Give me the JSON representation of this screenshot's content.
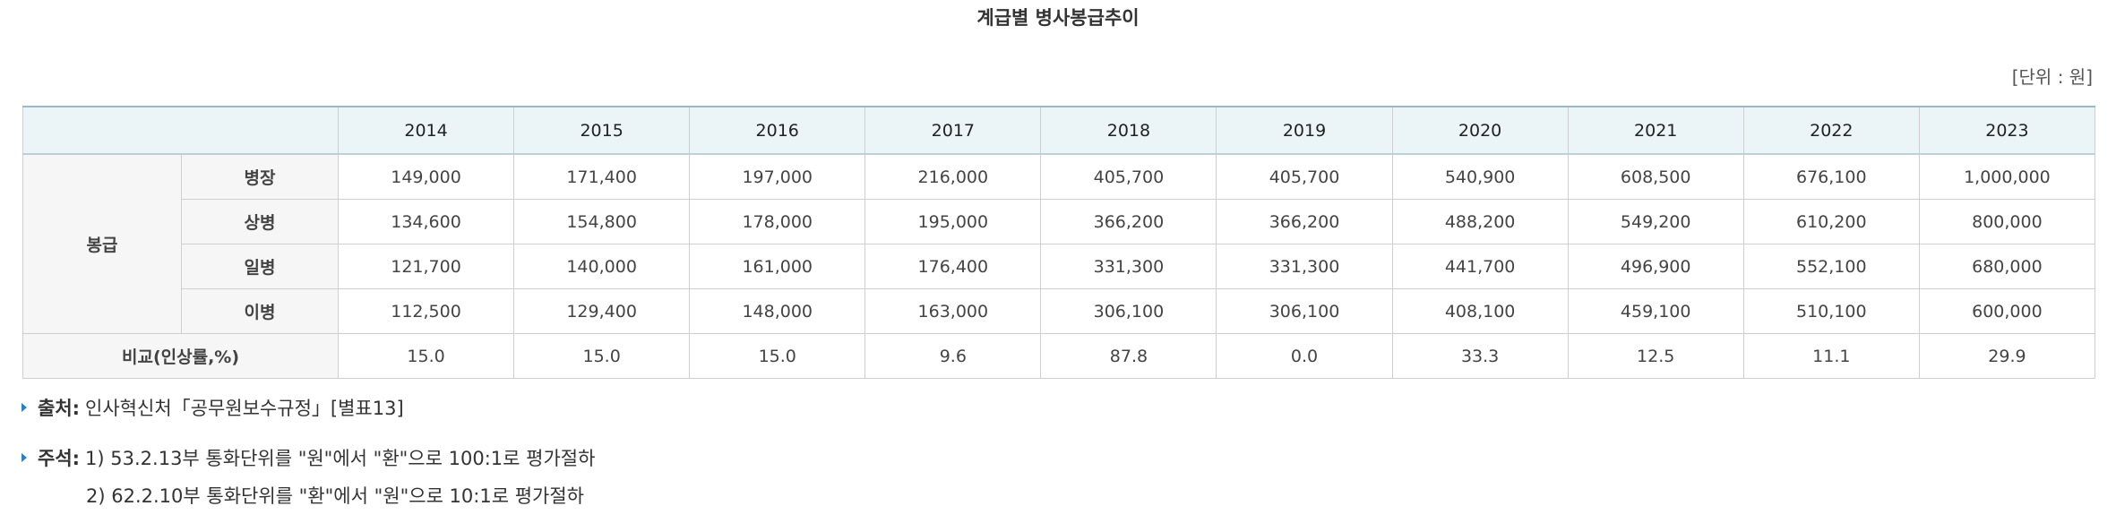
{
  "title": "계급별 병사봉급추이",
  "unit": "[단위 : 원]",
  "table": {
    "years": [
      "2014",
      "2015",
      "2016",
      "2017",
      "2018",
      "2019",
      "2020",
      "2021",
      "2022",
      "2023"
    ],
    "group_label": "봉급",
    "rows": [
      {
        "rank": "병장",
        "values": [
          "149,000",
          "171,400",
          "197,000",
          "216,000",
          "405,700",
          "405,700",
          "540,900",
          "608,500",
          "676,100",
          "1,000,000"
        ]
      },
      {
        "rank": "상병",
        "values": [
          "134,600",
          "154,800",
          "178,000",
          "195,000",
          "366,200",
          "366,200",
          "488,200",
          "549,200",
          "610,200",
          "800,000"
        ]
      },
      {
        "rank": "일병",
        "values": [
          "121,700",
          "140,000",
          "161,000",
          "176,400",
          "331,300",
          "331,300",
          "441,700",
          "496,900",
          "552,100",
          "680,000"
        ]
      },
      {
        "rank": "이병",
        "values": [
          "112,500",
          "129,400",
          "148,000",
          "163,000",
          "306,100",
          "306,100",
          "408,100",
          "459,100",
          "510,100",
          "600,000"
        ]
      }
    ],
    "compare": {
      "label": "비교(인상률,%)",
      "values": [
        "15.0",
        "15.0",
        "15.0",
        "9.6",
        "87.8",
        "0.0",
        "33.3",
        "12.5",
        "11.1",
        "29.9"
      ]
    }
  },
  "notes": {
    "source_label": "출처:",
    "source_text": "인사혁신처「공무원보수규정」[별표13]",
    "remark_label": "주석:",
    "remark_1": "1) 53.2.13부 통화단위를 \"원\"에서 \"환\"으로 100:1로 평가절하",
    "remark_2": "2) 62.2.10부 통화단위를 \"환\"에서 \"원\"으로 10:1로 평가절하"
  },
  "colors": {
    "header_bg": "#ebf5f8",
    "label_bg": "#f6f6f6",
    "bullet": "#2e7fbf"
  }
}
